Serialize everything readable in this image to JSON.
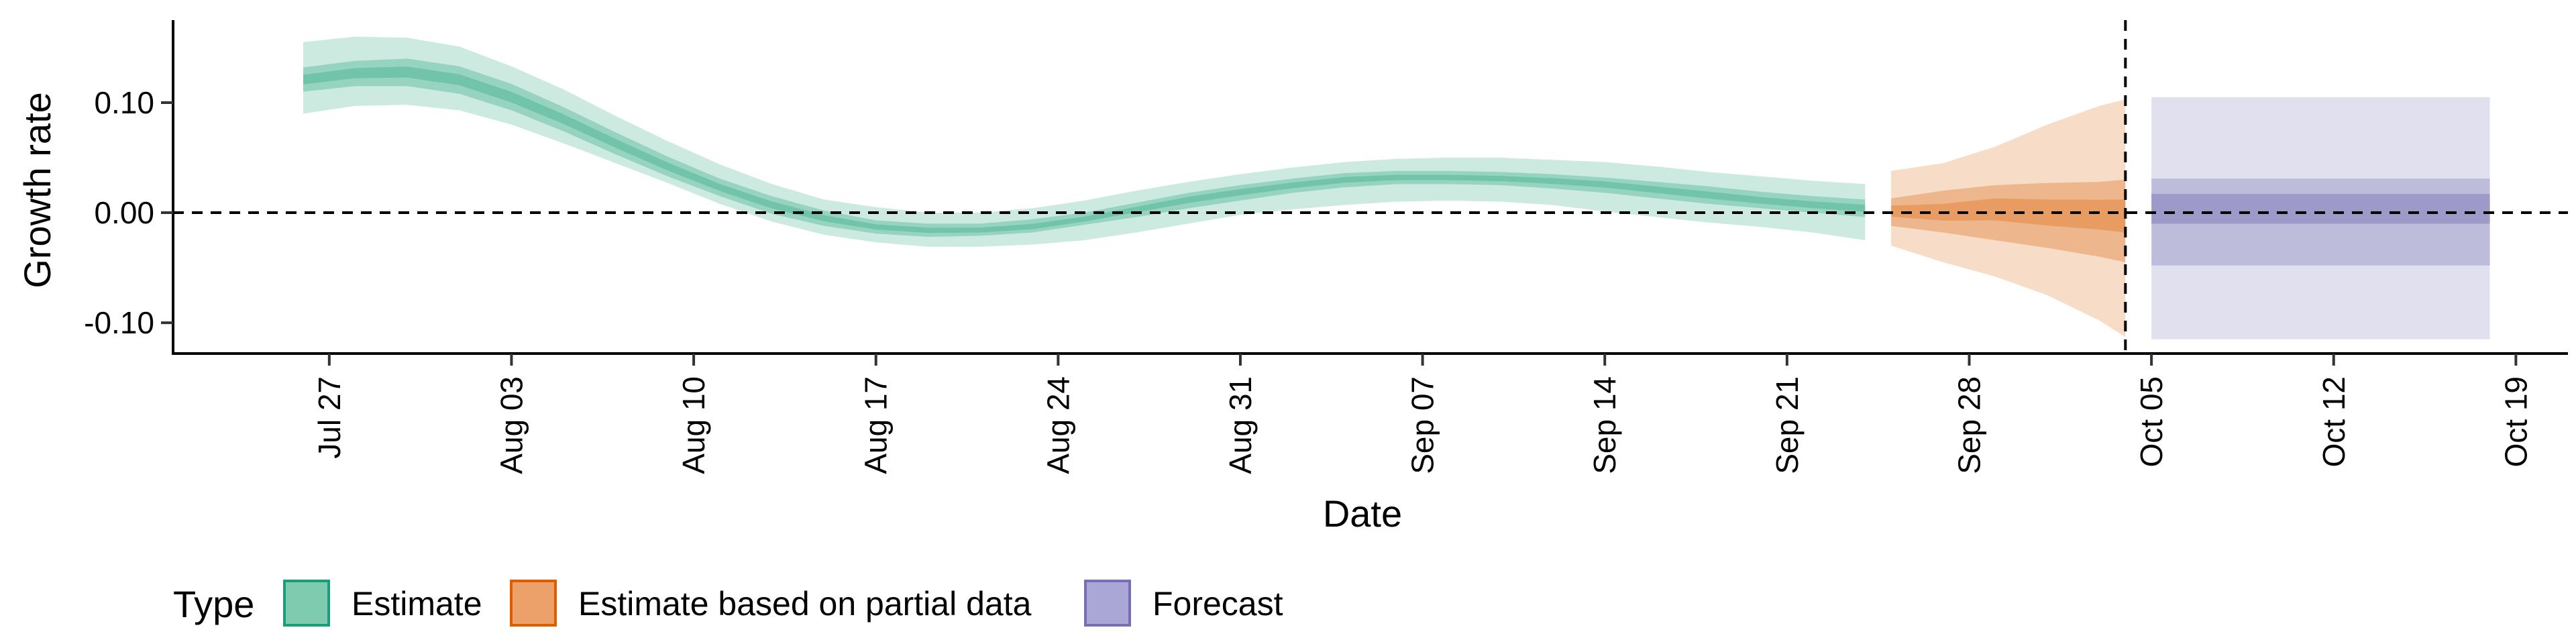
{
  "chart_data": {
    "type": "area",
    "xlabel": "Date",
    "ylabel": "Growth rate",
    "xlim": [
      "2020-07-21",
      "2020-10-21"
    ],
    "ylim": [
      -0.128,
      0.175
    ],
    "x_ticks": [
      {
        "date": "2020-07-27",
        "label": "Jul 27"
      },
      {
        "date": "2020-08-03",
        "label": "Aug 03"
      },
      {
        "date": "2020-08-10",
        "label": "Aug 10"
      },
      {
        "date": "2020-08-17",
        "label": "Aug 17"
      },
      {
        "date": "2020-08-24",
        "label": "Aug 24"
      },
      {
        "date": "2020-08-31",
        "label": "Aug 31"
      },
      {
        "date": "2020-09-07",
        "label": "Sep 07"
      },
      {
        "date": "2020-09-14",
        "label": "Sep 14"
      },
      {
        "date": "2020-09-21",
        "label": "Sep 21"
      },
      {
        "date": "2020-09-28",
        "label": "Sep 28"
      },
      {
        "date": "2020-10-05",
        "label": "Oct 05"
      },
      {
        "date": "2020-10-12",
        "label": "Oct 12"
      },
      {
        "date": "2020-10-19",
        "label": "Oct 19"
      }
    ],
    "y_ticks": [
      {
        "value": 0.1,
        "label": "0.10"
      },
      {
        "value": 0.0,
        "label": "0.00"
      },
      {
        "value": -0.1,
        "label": "-0.10"
      }
    ],
    "reference_lines": {
      "horizontal_y": 0.0,
      "vertical_date": "2020-10-04"
    },
    "legend": {
      "title": "Type",
      "position": "bottom",
      "entries": [
        {
          "label": "Estimate",
          "fill": "#7fcbb0",
          "stroke": "#1b9e77"
        },
        {
          "label": "Estimate based on partial data",
          "fill": "#eca06a",
          "stroke": "#d95f02"
        },
        {
          "label": "Forecast",
          "fill": "#aaa7d6",
          "stroke": "#7570b3"
        }
      ]
    },
    "series": [
      {
        "type_label": "Estimate",
        "color": "#1b9e77",
        "x": [
          "2020-07-26",
          "2020-07-28",
          "2020-07-30",
          "2020-08-01",
          "2020-08-03",
          "2020-08-05",
          "2020-08-07",
          "2020-08-09",
          "2020-08-11",
          "2020-08-13",
          "2020-08-15",
          "2020-08-17",
          "2020-08-19",
          "2020-08-21",
          "2020-08-23",
          "2020-08-25",
          "2020-08-27",
          "2020-08-29",
          "2020-08-31",
          "2020-09-02",
          "2020-09-04",
          "2020-09-06",
          "2020-09-08",
          "2020-09-10",
          "2020-09-12",
          "2020-09-14",
          "2020-09-16",
          "2020-09-18",
          "2020-09-20",
          "2020-09-22",
          "2020-09-24"
        ],
        "lower90": [
          0.09,
          0.097,
          0.098,
          0.093,
          0.08,
          0.063,
          0.045,
          0.027,
          0.008,
          -0.008,
          -0.02,
          -0.027,
          -0.031,
          -0.031,
          -0.029,
          -0.025,
          -0.018,
          -0.01,
          -0.002,
          0.003,
          0.007,
          0.01,
          0.011,
          0.01,
          0.007,
          0.001,
          -0.004,
          -0.009,
          -0.013,
          -0.018,
          -0.025
        ],
        "lower50": [
          0.11,
          0.115,
          0.115,
          0.108,
          0.093,
          0.074,
          0.053,
          0.033,
          0.015,
          -0.001,
          -0.012,
          -0.019,
          -0.022,
          -0.021,
          -0.018,
          -0.011,
          -0.004,
          0.004,
          0.011,
          0.018,
          0.023,
          0.026,
          0.026,
          0.025,
          0.022,
          0.018,
          0.013,
          0.008,
          0.004,
          0.0,
          -0.004
        ],
        "median": [
          0.121,
          0.127,
          0.128,
          0.121,
          0.105,
          0.085,
          0.063,
          0.042,
          0.023,
          0.007,
          -0.005,
          -0.013,
          -0.016,
          -0.016,
          -0.013,
          -0.006,
          0.003,
          0.012,
          0.019,
          0.025,
          0.03,
          0.032,
          0.032,
          0.031,
          0.029,
          0.026,
          0.021,
          0.016,
          0.011,
          0.007,
          0.004
        ],
        "upper50": [
          0.132,
          0.138,
          0.14,
          0.133,
          0.117,
          0.096,
          0.073,
          0.051,
          0.031,
          0.015,
          0.002,
          -0.007,
          -0.01,
          -0.01,
          -0.006,
          0.0,
          0.009,
          0.018,
          0.025,
          0.031,
          0.036,
          0.038,
          0.038,
          0.037,
          0.035,
          0.032,
          0.028,
          0.024,
          0.019,
          0.015,
          0.012
        ],
        "upper90": [
          0.155,
          0.16,
          0.159,
          0.151,
          0.133,
          0.112,
          0.088,
          0.065,
          0.044,
          0.026,
          0.012,
          0.005,
          0.0,
          0.0,
          0.004,
          0.011,
          0.02,
          0.028,
          0.035,
          0.041,
          0.046,
          0.049,
          0.05,
          0.05,
          0.048,
          0.046,
          0.042,
          0.037,
          0.033,
          0.029,
          0.026
        ]
      },
      {
        "type_label": "Estimate based on partial data",
        "color": "#d95f02",
        "x": [
          "2020-09-25",
          "2020-09-27",
          "2020-09-29",
          "2020-10-01",
          "2020-10-03",
          "2020-10-04"
        ],
        "lower90": [
          -0.03,
          -0.045,
          -0.058,
          -0.075,
          -0.098,
          -0.113
        ],
        "lower50": [
          -0.012,
          -0.018,
          -0.025,
          -0.032,
          -0.04,
          -0.045
        ],
        "median": [
          0.002,
          0.0,
          0.005,
          0.002,
          0.001,
          0.0
        ],
        "upper50": [
          0.013,
          0.02,
          0.025,
          0.027,
          0.028,
          0.03
        ],
        "upper90": [
          0.038,
          0.045,
          0.06,
          0.08,
          0.097,
          0.103
        ]
      },
      {
        "type_label": "Forecast",
        "color": "#7570b3",
        "x": [
          "2020-10-05",
          "2020-10-18"
        ],
        "lower90": [
          -0.115,
          -0.115
        ],
        "lower50": [
          -0.048,
          -0.048
        ],
        "lower20": [
          -0.01,
          -0.01
        ],
        "median": [
          0.0,
          0.0
        ],
        "upper20": [
          0.017,
          0.017
        ],
        "upper50": [
          0.031,
          0.031
        ],
        "upper90": [
          0.105,
          0.105
        ]
      }
    ]
  }
}
